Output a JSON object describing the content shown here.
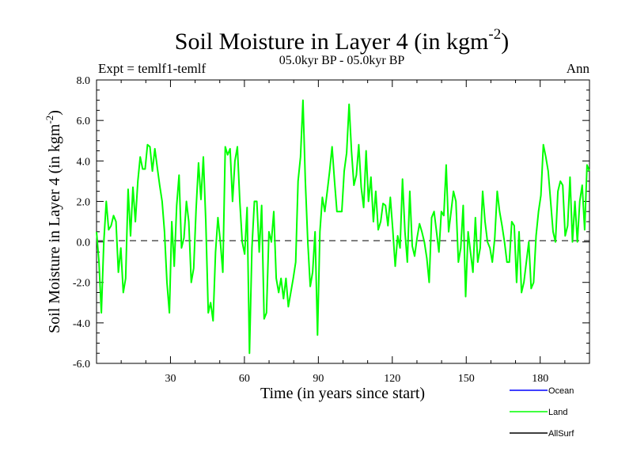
{
  "chart_data": {
    "type": "line",
    "title": "Soil Moisture in Layer 4 (in kgm",
    "title_sup": "-2",
    "title_close": ")",
    "subtitle": "05.0kyr BP - 05.0kyr BP",
    "left_label": "Expt = temlf1-temlf",
    "right_label": "Ann",
    "xlabel": "Time (in years since start)",
    "ylabel": "Soil Moisture in Layer 4 (in kgm",
    "ylabel_sup": "-2",
    "ylabel_close": ")",
    "xlim": [
      0,
      200
    ],
    "ylim": [
      -6,
      8
    ],
    "xticks": [
      30,
      60,
      90,
      120,
      150,
      180
    ],
    "xtick_labels": [
      "30",
      "60",
      "90",
      "120",
      "150",
      "180"
    ],
    "yticks": [
      -6,
      -4,
      -2,
      0,
      2,
      4,
      6,
      8
    ],
    "ytick_labels": [
      "-6.0",
      "-4.0",
      "-2.0",
      "0.0",
      "2.0",
      "4.0",
      "6.0",
      "8.0"
    ],
    "zero_line": true,
    "legend_position": "bottom-right",
    "series": [
      {
        "name": "Ocean",
        "color": "#0000ff",
        "values": []
      },
      {
        "name": "Land",
        "color": "#00ff00",
        "values": [
          0.5,
          -1.0,
          -3.5,
          0.0,
          2.0,
          0.6,
          0.8,
          1.3,
          1.0,
          -1.5,
          -0.3,
          -2.5,
          -1.8,
          2.6,
          0.3,
          2.7,
          1.0,
          3.0,
          4.2,
          3.6,
          3.6,
          4.8,
          4.7,
          3.5,
          4.6,
          3.7,
          2.8,
          2.0,
          0.5,
          -2.0,
          -3.5,
          1.0,
          -1.2,
          1.8,
          3.3,
          -0.3,
          0.2,
          2.0,
          1.0,
          -2.0,
          -1.3,
          1.6,
          3.9,
          2.1,
          4.2,
          1.0,
          -3.5,
          -3.0,
          -3.9,
          -0.5,
          1.2,
          0.0,
          -1.5,
          4.7,
          4.3,
          4.6,
          2.0,
          4.0,
          4.7,
          2.0,
          0.0,
          -0.6,
          1.7,
          -5.5,
          -0.3,
          2.0,
          2.0,
          -0.5,
          1.8,
          -3.8,
          -3.5,
          0.5,
          0.0,
          1.5,
          -1.8,
          -2.5,
          -1.8,
          -2.8,
          -1.8,
          -3.2,
          -2.5,
          -1.8,
          -1.0,
          3.0,
          4.2,
          7.0,
          3.0,
          0.0,
          -2.2,
          -1.5,
          0.5,
          -4.6,
          0.5,
          2.2,
          1.5,
          2.5,
          3.5,
          4.7,
          3.0,
          1.5,
          1.5,
          1.5,
          3.5,
          4.4,
          6.8,
          4.5,
          2.8,
          3.3,
          4.8,
          2.7,
          1.7,
          4.5,
          2.0,
          3.2,
          1.0,
          2.5,
          0.6,
          1.0,
          1.9,
          1.8,
          0.8,
          2.2,
          0.6,
          -1.2,
          0.3,
          -0.3,
          3.1,
          0.5,
          -1.0,
          2.5,
          -0.2,
          -0.7,
          0.2,
          0.9,
          0.5,
          0.0,
          -0.8,
          -2.0,
          1.2,
          1.5,
          0.5,
          -0.5,
          1.5,
          1.3,
          3.8,
          0.5,
          1.5,
          2.5,
          2.0,
          -1.0,
          -0.3,
          1.8,
          -2.7,
          0.5,
          -0.5,
          -1.5,
          1.2,
          -1.0,
          -0.3,
          2.5,
          1.0,
          0.0,
          -0.3,
          -1.0,
          0.2,
          2.5,
          1.5,
          0.8,
          0.0,
          -1.0,
          -1.0,
          1.0,
          0.8,
          -2.0,
          0.5,
          -2.5,
          -2.0,
          -1.0,
          0.0,
          -2.3,
          -2.0,
          0.3,
          1.5,
          2.3,
          4.8,
          4.2,
          3.5,
          2.0,
          0.5,
          0.0,
          2.5,
          3.0,
          2.8,
          0.3,
          0.8,
          3.2,
          0.0,
          2.0,
          0.0,
          2.0,
          2.8,
          0.6,
          3.8,
          3.5
        ]
      },
      {
        "name": "AllSurf",
        "color": "#000000",
        "values": []
      }
    ]
  }
}
